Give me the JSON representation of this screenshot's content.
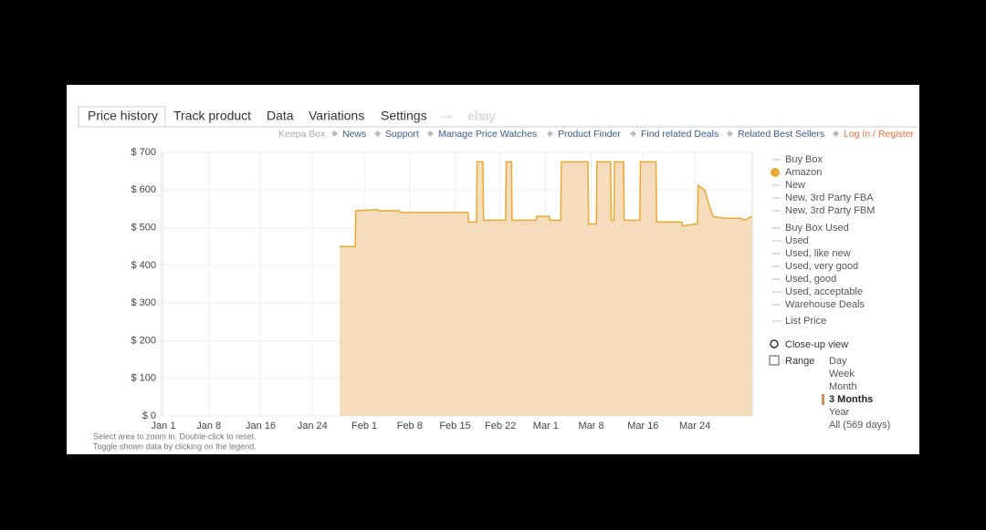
{
  "tabs": [
    "Price history",
    "Track product",
    "Data",
    "Variations",
    "Settings"
  ],
  "brand": "ebay",
  "links": [
    "Keepa Box",
    "News",
    "Support",
    "Manage Price Watches",
    "Product Finder",
    "Find related Deals",
    "Related Best Sellers",
    "Log In / Register"
  ],
  "notes": [
    "Select area to zoom in. Double-click to reset.",
    "Toggle shown data by clicking on the legend."
  ],
  "legend": [
    "Buy Box",
    "New",
    "New, 3rd Party FBA",
    "New, 3rd Party FBM",
    "Buy Box Used",
    "Used",
    "Used, like new",
    "Used, very good",
    "Used, good",
    "Used, acceptable",
    "Warehouse Deals",
    "List Price"
  ],
  "closeup": "Close-up view",
  "range_label": "Range",
  "ranges": [
    "Day",
    "Week",
    "Month",
    "3 Months",
    "Year",
    "All (569 days)"
  ],
  "selected_range": "3 Months",
  "chart_data": {
    "type": "area",
    "xlim": [
      0,
      91
    ],
    "xticks": [
      {
        "value": 0,
        "label": "Jan 1"
      },
      {
        "value": 7,
        "label": "Jan 8"
      },
      {
        "value": 15,
        "label": "Jan 16"
      },
      {
        "value": 23,
        "label": "Jan 24"
      },
      {
        "value": 31,
        "label": "Feb 1"
      },
      {
        "value": 38,
        "label": "Feb 8"
      },
      {
        "value": 45,
        "label": "Feb 15"
      },
      {
        "value": 52,
        "label": "Feb 22"
      },
      {
        "value": 59,
        "label": "Mar 1"
      },
      {
        "value": 66,
        "label": "Mar 8"
      },
      {
        "value": 74,
        "label": "Mar 16"
      },
      {
        "value": 82,
        "label": "Mar 24"
      }
    ],
    "ylim": [
      0,
      700
    ],
    "yticks": [
      {
        "value": 0,
        "label": "$ 0"
      },
      {
        "value": 100,
        "label": "$ 100"
      },
      {
        "value": 200,
        "label": "$ 200"
      },
      {
        "value": 300,
        "label": "$ 300"
      },
      {
        "value": 400,
        "label": "$ 400"
      },
      {
        "value": 500,
        "label": "$ 500"
      },
      {
        "value": 600,
        "label": "$ 600"
      },
      {
        "value": 700,
        "label": "$ 700"
      }
    ],
    "grid": true,
    "series": [
      {
        "name": "Amazon",
        "color": "#e8a932",
        "fill": "#f5dcbc",
        "x": [
          27.2,
          29.6,
          29.7,
          33,
          33.2,
          36.4,
          36.5,
          47,
          47.1,
          48.3,
          48.4,
          49.3,
          49.4,
          52.8,
          52.9,
          53.7,
          53.8,
          57.5,
          57.6,
          59.5,
          59.6,
          61.3,
          61.4,
          65.5,
          65.6,
          66.8,
          66.9,
          69,
          69.1,
          69.5,
          69.6,
          71,
          71.1,
          73.5,
          73.6,
          76,
          76.1,
          80,
          80.1,
          82.4,
          82.5,
          83.5,
          84.2,
          84.8,
          86.5,
          89,
          89.8,
          90.8
        ],
        "values": [
          450,
          450,
          545,
          548,
          545,
          545,
          540,
          540,
          515,
          515,
          675,
          675,
          520,
          520,
          675,
          675,
          520,
          520,
          530,
          530,
          520,
          520,
          675,
          675,
          510,
          510,
          675,
          675,
          520,
          520,
          675,
          675,
          520,
          520,
          675,
          675,
          515,
          515,
          505,
          510,
          612,
          600,
          560,
          530,
          525,
          525,
          520,
          530
        ]
      }
    ]
  }
}
